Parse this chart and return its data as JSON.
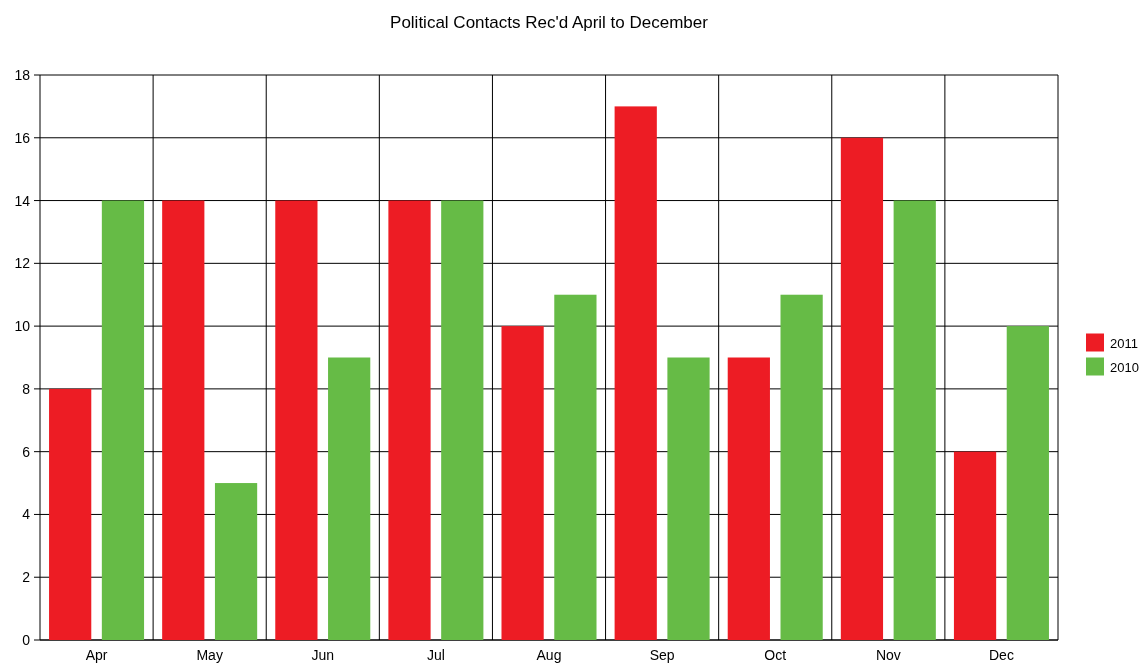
{
  "chart_data": {
    "type": "bar",
    "title": "Political Contacts Rec'd April to December",
    "categories": [
      "Apr",
      "May",
      "Jun",
      "Jul",
      "Aug",
      "Sep",
      "Oct",
      "Nov",
      "Dec"
    ],
    "series": [
      {
        "name": "2011",
        "color": "#ed1c24",
        "values": [
          8,
          14,
          14,
          14,
          10,
          17,
          9,
          16,
          6
        ]
      },
      {
        "name": "2010",
        "color": "#66bb46",
        "values": [
          14,
          5,
          9,
          14,
          11,
          9,
          11,
          14,
          10
        ]
      }
    ],
    "ylim": [
      0,
      18
    ],
    "yticks": [
      0,
      2,
      4,
      6,
      8,
      10,
      12,
      14,
      16,
      18
    ],
    "grid": true,
    "legend": "right"
  }
}
